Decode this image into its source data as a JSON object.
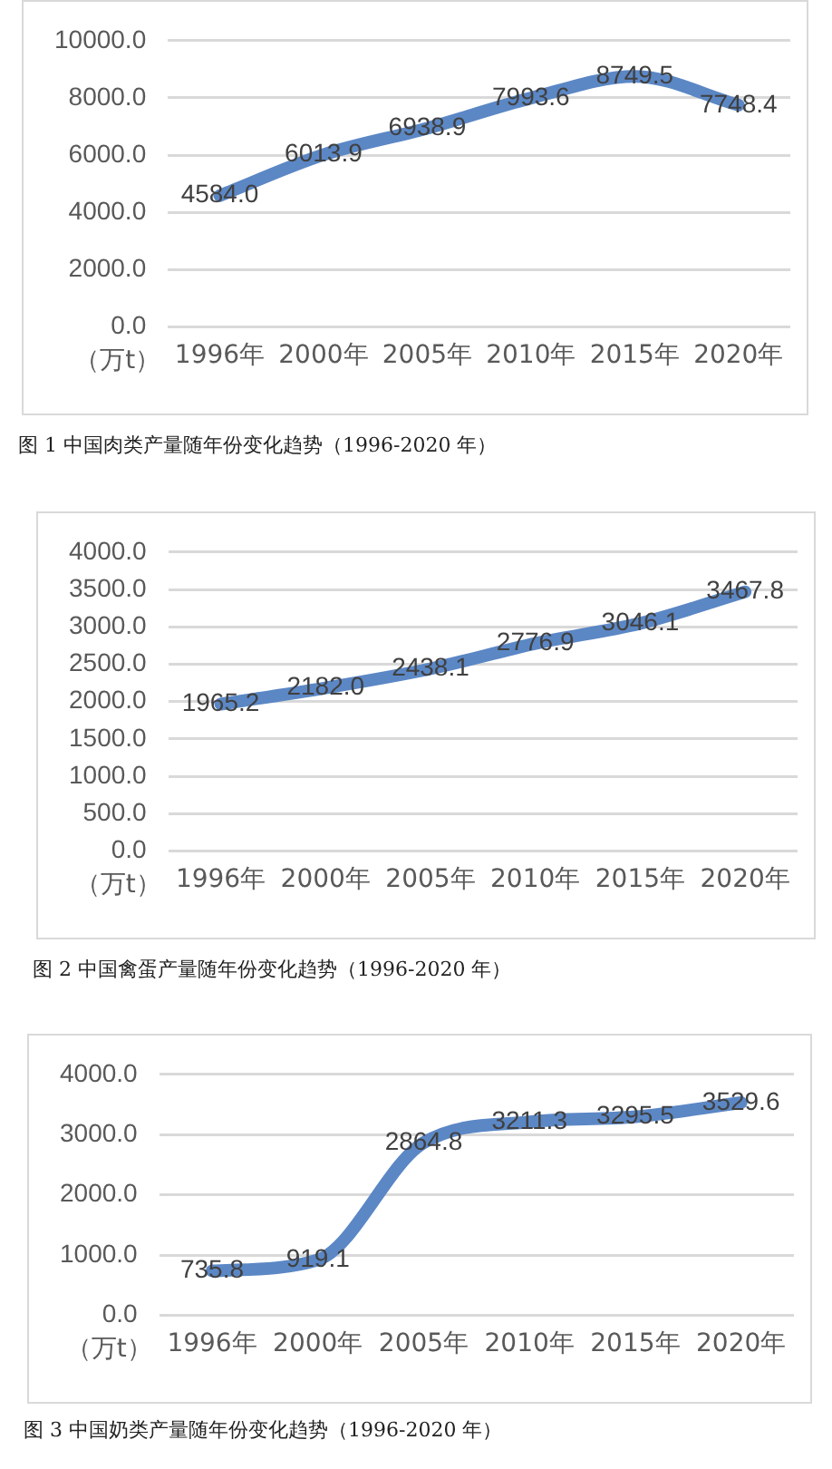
{
  "chart_data": [
    {
      "type": "line",
      "categories": [
        "1996年",
        "2000年",
        "2005年",
        "2010年",
        "2015年",
        "2020年"
      ],
      "ylabel": "（万t）",
      "annotations": [
        "图 1 中国肉类产量随年份变化趋势（1996-2020 年）"
      ],
      "series": [
        {
          "color": "#5b87c5",
          "values": [
            4584.0,
            6013.9,
            6938.9,
            7993.6,
            8749.5,
            7748.4
          ],
          "value_labels": [
            "4584.0",
            "6013.9",
            "6938.9",
            "7993.6",
            "8749.5",
            "7748.4"
          ]
        }
      ],
      "ylim": [
        0,
        10000
      ],
      "yticks": [
        {
          "value": 0,
          "label": "0.0"
        },
        {
          "value": 2000,
          "label": "2000.0"
        },
        {
          "value": 4000,
          "label": "4000.0"
        },
        {
          "value": 6000,
          "label": "6000.0"
        },
        {
          "value": 8000,
          "label": "8000.0"
        },
        {
          "value": 10000,
          "label": "10000.0"
        }
      ],
      "grid": "y",
      "legend": false,
      "marker": "none",
      "line_style": "solid"
    },
    {
      "type": "line",
      "categories": [
        "1996年",
        "2000年",
        "2005年",
        "2010年",
        "2015年",
        "2020年"
      ],
      "ylabel": "（万t）",
      "annotations": [
        "图 2 中国禽蛋产量随年份变化趋势（1996-2020 年）"
      ],
      "series": [
        {
          "color": "#5b87c5",
          "values": [
            1965.2,
            2182.0,
            2438.1,
            2776.9,
            3046.1,
            3467.8
          ],
          "value_labels": [
            "1965.2",
            "2182.0",
            "2438.1",
            "2776.9",
            "3046.1",
            "3467.8"
          ]
        }
      ],
      "ylim": [
        0,
        4000
      ],
      "yticks": [
        {
          "value": 0,
          "label": "0.0"
        },
        {
          "value": 500,
          "label": "500.0"
        },
        {
          "value": 1000,
          "label": "1000.0"
        },
        {
          "value": 1500,
          "label": "1500.0"
        },
        {
          "value": 2000,
          "label": "2000.0"
        },
        {
          "value": 2500,
          "label": "2500.0"
        },
        {
          "value": 3000,
          "label": "3000.0"
        },
        {
          "value": 3500,
          "label": "3500.0"
        },
        {
          "value": 4000,
          "label": "4000.0"
        }
      ],
      "grid": "y",
      "legend": false,
      "marker": "none",
      "line_style": "solid"
    },
    {
      "type": "line",
      "categories": [
        "1996年",
        "2000年",
        "2005年",
        "2010年",
        "2015年",
        "2020年"
      ],
      "ylabel": "（万t）",
      "annotations": [
        "图 3 中国奶类产量随年份变化趋势（1996-2020 年）"
      ],
      "series": [
        {
          "color": "#5b87c5",
          "values": [
            735.8,
            919.1,
            2864.8,
            3211.3,
            3295.5,
            3529.6
          ],
          "value_labels": [
            "735.8",
            "919.1",
            "2864.8",
            "3211.3",
            "3295.5",
            "3529.6"
          ]
        }
      ],
      "ylim": [
        0,
        4000
      ],
      "yticks": [
        {
          "value": 0,
          "label": "0.0"
        },
        {
          "value": 1000,
          "label": "1000.0"
        },
        {
          "value": 2000,
          "label": "2000.0"
        },
        {
          "value": 3000,
          "label": "3000.0"
        },
        {
          "value": 4000,
          "label": "4000.0"
        }
      ],
      "grid": "y",
      "legend": false,
      "marker": "none",
      "line_style": "solid"
    }
  ]
}
